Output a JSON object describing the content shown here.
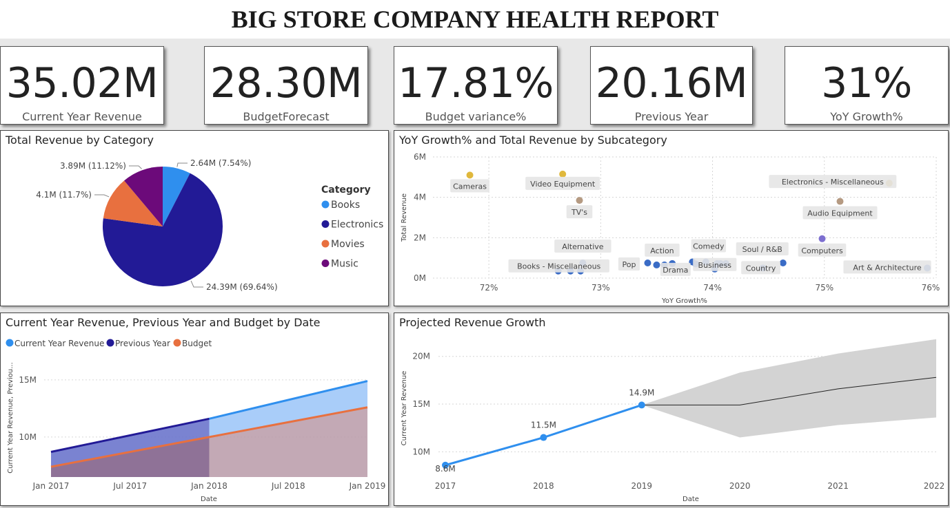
{
  "report_title": "BIG STORE COMPANY HEALTH REPORT",
  "kpis": [
    {
      "value": "35.02M",
      "label": "Current Year Revenue"
    },
    {
      "value": "28.30M",
      "label": "BudgetForecast"
    },
    {
      "value": "17.81%",
      "label": "Budget variance%"
    },
    {
      "value": "20.16M",
      "label": "Previous Year"
    },
    {
      "value": "31%",
      "label": "YoY Growth%"
    }
  ],
  "panels": {
    "pie_title": "Total Revenue by Category",
    "scatter_title": "YoY Growth% and Total Revenue by Subcategory",
    "area_title": "Current Year Revenue, Previous Year and Budget by Date",
    "forecast_title": "Projected Revenue Growth"
  },
  "chart_data": [
    {
      "type": "pie",
      "title": "Total Revenue by Category",
      "legend_title": "Category",
      "legend_position": "right",
      "slices": [
        {
          "name": "Books",
          "value": 2.64,
          "label": "2.64M (7.54%)",
          "color": "#2f8fee"
        },
        {
          "name": "Electronics",
          "value": 24.39,
          "label": "24.39M (69.64%)",
          "color": "#221a96"
        },
        {
          "name": "Movies",
          "value": 4.1,
          "label": "4.1M (11.7%)",
          "color": "#e8703f"
        },
        {
          "name": "Music",
          "value": 3.89,
          "label": "3.89M (11.12%)",
          "color": "#6c0a7a"
        }
      ]
    },
    {
      "type": "scatter",
      "title": "YoY Growth% and Total Revenue by Subcategory",
      "xlabel": "YoY Growth%",
      "ylabel": "Total Revenue",
      "xlim": [
        71.5,
        76
      ],
      "ylim": [
        0,
        6
      ],
      "x_ticks": [
        "72%",
        "73%",
        "74%",
        "75%",
        "76%"
      ],
      "y_ticks": [
        "0M",
        "2M",
        "4M",
        "6M"
      ],
      "grid": true,
      "points": [
        {
          "x": 71.83,
          "y": 5.1,
          "label": "Cameras",
          "color": "#e0b83c"
        },
        {
          "x": 72.66,
          "y": 5.15,
          "label": "Video Equipment",
          "color": "#e0b83c"
        },
        {
          "x": 75.58,
          "y": 4.7,
          "label": "Electronics - Miscellaneous",
          "color": "#d1b04a"
        },
        {
          "x": 72.81,
          "y": 3.85,
          "label": "TV's",
          "color": "#b59a82"
        },
        {
          "x": 75.14,
          "y": 3.8,
          "label": "Audio Equipment",
          "color": "#b59a82"
        },
        {
          "x": 74.98,
          "y": 1.95,
          "label": "Computers",
          "color": "#7d6fd0"
        },
        {
          "x": 72.84,
          "y": 0.75,
          "label": "Alternative",
          "color": "#3a6cc6"
        },
        {
          "x": 72.62,
          "y": 0.35,
          "label": "Books - Miscellaneous",
          "color": "#3a6cc6"
        },
        {
          "x": 72.73,
          "y": 0.35,
          "label": "",
          "color": "#3a6cc6"
        },
        {
          "x": 72.82,
          "y": 0.35,
          "label": "",
          "color": "#3a6cc6"
        },
        {
          "x": 73.42,
          "y": 0.75,
          "label": "Pop",
          "color": "#3a6cc6"
        },
        {
          "x": 73.5,
          "y": 0.65,
          "label": "Action",
          "color": "#3a6cc6"
        },
        {
          "x": 73.57,
          "y": 0.65,
          "label": "Drama",
          "color": "#3a6cc6"
        },
        {
          "x": 73.64,
          "y": 0.72,
          "label": "",
          "color": "#3a6cc6"
        },
        {
          "x": 73.82,
          "y": 0.8,
          "label": "",
          "color": "#3a6cc6"
        },
        {
          "x": 73.85,
          "y": 0.7,
          "label": "",
          "color": "#3a6cc6"
        },
        {
          "x": 73.94,
          "y": 0.8,
          "label": "Comedy",
          "color": "#3a6cc6"
        },
        {
          "x": 74.02,
          "y": 0.45,
          "label": "Business",
          "color": "#3a6cc6"
        },
        {
          "x": 74.04,
          "y": 0.72,
          "label": "",
          "color": "#3a6cc6"
        },
        {
          "x": 74.07,
          "y": 0.72,
          "label": "",
          "color": "#3a6cc6"
        },
        {
          "x": 74.12,
          "y": 0.72,
          "label": "",
          "color": "#3a6cc6"
        },
        {
          "x": 74.45,
          "y": 0.5,
          "label": "Country",
          "color": "#3a6cc6"
        },
        {
          "x": 74.63,
          "y": 0.75,
          "label": "Soul / R&B",
          "color": "#3a6cc6"
        },
        {
          "x": 75.92,
          "y": 0.5,
          "label": "Art & Architecture",
          "color": "#3a6cc6"
        }
      ]
    },
    {
      "type": "area",
      "title": "Current Year Revenue, Previous Year and Budget by Date",
      "xlabel": "Date",
      "ylabel": "Current Year Revenue, Previou...",
      "legend_position": "top-left",
      "x_ticks": [
        "Jan 2017",
        "Jul 2017",
        "Jan 2018",
        "Jul 2018",
        "Jan 2019"
      ],
      "y_ticks": [
        "10M",
        "15M"
      ],
      "y_tick_values": [
        10,
        15
      ],
      "ylim": [
        6.5,
        16.5
      ],
      "series": [
        {
          "name": "Current Year Revenue",
          "color": "#2f8fee",
          "x": [
            "2018-01",
            "2019-01"
          ],
          "values": [
            11.6,
            14.9
          ]
        },
        {
          "name": "Previous Year",
          "color": "#221a96",
          "x": [
            "2017-01",
            "2018-01"
          ],
          "values": [
            8.7,
            11.6
          ]
        },
        {
          "name": "Budget",
          "color": "#e8703f",
          "x": [
            "2017-01",
            "2019-01"
          ],
          "values": [
            7.4,
            12.6
          ]
        }
      ]
    },
    {
      "type": "line",
      "title": "Projected Revenue Growth",
      "xlabel": "Date",
      "ylabel": "Current Year Revenue",
      "x_ticks": [
        "2017",
        "2018",
        "2019",
        "2020",
        "2021",
        "2022"
      ],
      "y_ticks": [
        "10M",
        "15M",
        "20M"
      ],
      "y_tick_values": [
        10,
        15,
        20
      ],
      "ylim": [
        7.5,
        22
      ],
      "actual": {
        "x": [
          2017,
          2018,
          2019
        ],
        "values": [
          8.6,
          11.5,
          14.9
        ],
        "labels": [
          "8.6M",
          "11.5M",
          "14.9M"
        ],
        "color": "#2f8fee"
      },
      "forecast": {
        "x": [
          2019,
          2020,
          2021,
          2022
        ],
        "values": [
          14.9,
          14.9,
          16.6,
          17.8
        ],
        "upper": [
          14.9,
          18.3,
          20.3,
          21.8
        ],
        "lower": [
          14.9,
          11.5,
          12.8,
          13.6
        ]
      }
    }
  ]
}
